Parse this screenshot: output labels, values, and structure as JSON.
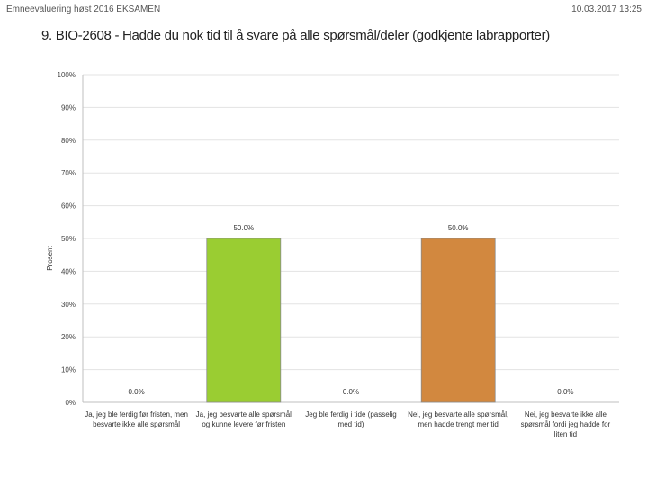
{
  "header": {
    "left": "Emneevaluering høst 2016 EKSAMEN",
    "right": "10.03.2017 13:25"
  },
  "title": "9. BIO-2608 - Hadde du nok tid til å svare på alle spørsmål/deler (godkjente labrapporter)",
  "chart_data": {
    "type": "bar",
    "ylabel": "Prosent",
    "ylim": [
      0,
      100
    ],
    "yticks": [
      "0%",
      "10%",
      "20%",
      "30%",
      "40%",
      "50%",
      "60%",
      "70%",
      "80%",
      "90%",
      "100%"
    ],
    "grid": true,
    "categories": [
      "Ja, jeg ble ferdig før fristen, men besvarte ikke alle spørsmål",
      "Ja, jeg besvarte alle spørsmål og kunne levere før fristen",
      "Jeg ble ferdig i tide (passelig med tid)",
      "Nei, jeg besvarte alle spørsmål, men hadde trengt mer tid",
      "Nei, jeg besvarte ikke alle spørsmål fordi jeg hadde for liten tid"
    ],
    "values": [
      0,
      50,
      0,
      50,
      0
    ],
    "data_labels": [
      "0.0%",
      "50.0%",
      "0.0%",
      "50.0%",
      "0.0%"
    ],
    "colors": [
      "#4a7ebb",
      "#9acd32",
      "#4a7ebb",
      "#d2883f",
      "#4a7ebb"
    ]
  }
}
